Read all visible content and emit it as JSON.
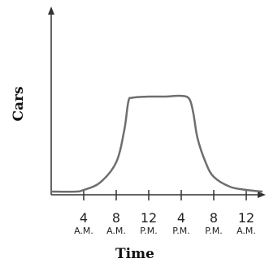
{
  "chart_data": {
    "type": "line",
    "x_label": "Time",
    "y_label": "Cars",
    "xlim": [
      0,
      26.2
    ],
    "ylim": [
      0,
      100
    ],
    "xticks": [
      {
        "value": 4,
        "label": "4 A.M."
      },
      {
        "value": 8,
        "label": "8 A.M."
      },
      {
        "value": 12,
        "label": "12 P.M."
      },
      {
        "value": 16,
        "label": "4 P.M."
      },
      {
        "value": 20,
        "label": "8 P.M."
      },
      {
        "value": 24,
        "label": "12 A.M."
      }
    ],
    "x": [
      0,
      3,
      4,
      6,
      8,
      9,
      9.5,
      10,
      12,
      14,
      16,
      17,
      17.5,
      18,
      19,
      20,
      22,
      24,
      26
    ],
    "series": [
      {
        "color": "#6e6e6e",
        "values": [
          1.7,
          1.7,
          2.6,
          6.5,
          17.4,
          34.8,
          50,
          52,
          52.6,
          52.6,
          53,
          51.3,
          43.5,
          30.4,
          17.4,
          9.6,
          4.3,
          2.6,
          1.7
        ]
      }
    ]
  }
}
